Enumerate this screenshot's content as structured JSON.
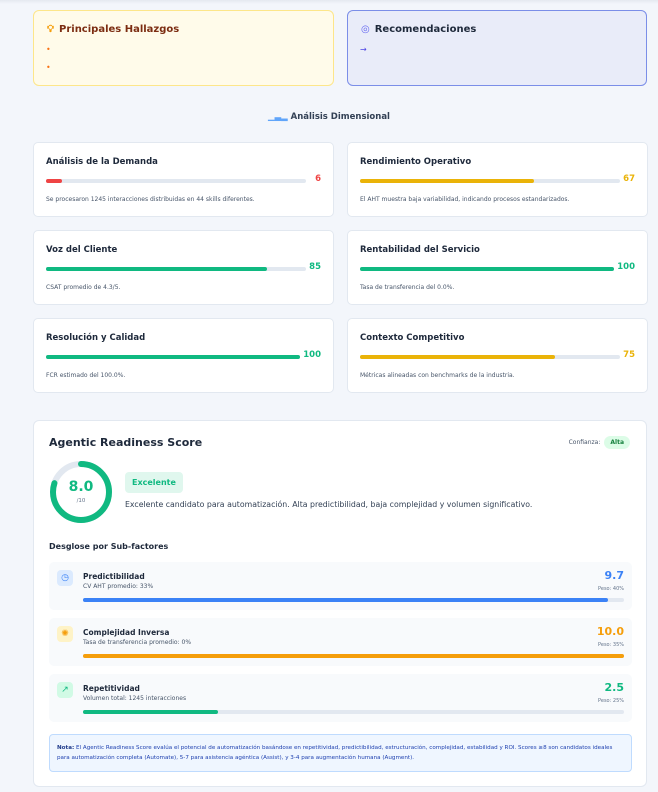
{
  "findings": {
    "title": "Principales Hallazgos",
    "icon": "lightbulb-icon",
    "items": [
      "",
      ""
    ],
    "bullet_color": "#f97316"
  },
  "recommendations": {
    "title": "Recomendaciones",
    "icon": "target-icon",
    "items": [
      ""
    ],
    "bullet": "→"
  },
  "section": {
    "title": "Análisis Dimensional",
    "icon": "bar-chart-icon"
  },
  "dimensions": [
    {
      "title": "Análisis de la Demanda",
      "score": 6,
      "color": "#ef4444",
      "desc": "Se procesaron 1245 interacciones distribuidas en 44 skills diferentes."
    },
    {
      "title": "Rendimiento Operativo",
      "score": 67,
      "color": "#eab308",
      "desc": "El AHT muestra baja variabilidad, indicando procesos estandarizados."
    },
    {
      "title": "Voz del Cliente",
      "score": 85,
      "color": "#10b981",
      "desc": "CSAT promedio de 4.3/5."
    },
    {
      "title": "Rentabilidad del Servicio",
      "score": 100,
      "color": "#10b981",
      "desc": "Tasa de transferencia del 0.0%."
    },
    {
      "title": "Resolución y Calidad",
      "score": 100,
      "color": "#10b981",
      "desc": "FCR estimado del 100.0%."
    },
    {
      "title": "Contexto Competitivo",
      "score": 75,
      "color": "#eab308",
      "desc": "Métricas alineadas con benchmarks de la industria."
    }
  ],
  "readiness": {
    "title": "Agentic Readiness Score",
    "confidence_label": "Confianza:",
    "confidence": "Alta",
    "score": "8.0",
    "score_value": 8.0,
    "max": "/10",
    "level": "Excelente",
    "description": "Excelente candidato para automatización. Alta predictibilidad, baja complejidad y volumen significativo.",
    "breakdown_title": "Desglose por Sub-factores",
    "subfactors": [
      {
        "name": "Predictibilidad",
        "detail": "CV AHT promedio: 33%",
        "score": "9.7",
        "value": 9.7,
        "weight": "Peso: 40%",
        "color": "#3b82f6",
        "icon": "clock-icon"
      },
      {
        "name": "Complejidad Inversa",
        "detail": "Tasa de transferencia promedio: 0%",
        "score": "10.0",
        "value": 10.0,
        "weight": "Peso: 35%",
        "color": "#f59e0b",
        "icon": "brain-icon"
      },
      {
        "name": "Repetitividad",
        "detail": "Volumen total: 1245 interacciones",
        "score": "2.5",
        "value": 2.5,
        "weight": "Peso: 25%",
        "color": "#10b981",
        "icon": "trending-up-icon"
      }
    ],
    "note_label": "Nota:",
    "note": "El Agentic Readiness Score evalúa el potencial de automatización basándose en repetitividad, predictibilidad, estructuración, complejidad, estabilidad y ROI. Scores ≥8 son candidatos ideales para automatización completa (Automate), 5-7 para asistencia agéntica (Assist), y 3-4 para augmentación humana (Augment)."
  }
}
